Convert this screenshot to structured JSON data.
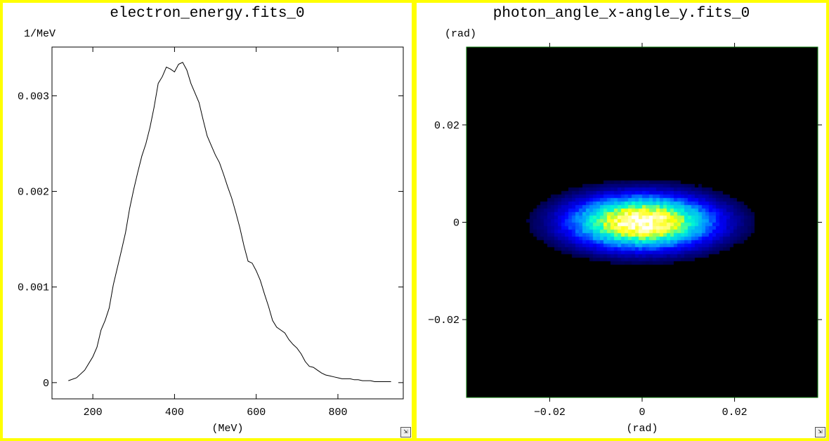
{
  "panels": [
    {
      "title": "electron_energy.fits_0",
      "resize_icon": "resize-icon",
      "chart_data": {
        "type": "line",
        "title": "electron_energy.fits_0",
        "xlabel": "(MeV)",
        "ylabel": "1/MeV",
        "xlim": [
          100,
          960
        ],
        "ylim": [
          -0.00017,
          0.00351
        ],
        "xticks": [
          200,
          400,
          600,
          800
        ],
        "yticks": [
          0,
          0.001,
          0.002,
          0.003
        ],
        "ytick_labels": [
          "0",
          "0.001",
          "0.002",
          "0.003"
        ],
        "grid": false,
        "series": [
          {
            "color": "#000000",
            "x": [
              140,
              160,
              180,
              200,
              210,
              220,
              230,
              240,
              250,
              260,
              270,
              280,
              290,
              300,
              310,
              320,
              330,
              340,
              350,
              360,
              370,
              380,
              390,
              400,
              410,
              420,
              430,
              440,
              450,
              460,
              470,
              480,
              490,
              500,
              510,
              520,
              530,
              540,
              550,
              560,
              570,
              580,
              590,
              600,
              610,
              620,
              630,
              640,
              650,
              660,
              670,
              680,
              690,
              700,
              710,
              720,
              730,
              740,
              750,
              760,
              770,
              780,
              790,
              800,
              810,
              820,
              830,
              840,
              850,
              860,
              870,
              880,
              890,
              900,
              910,
              920,
              930
            ],
            "y": [
              2e-05,
              5e-05,
              0.00013,
              0.00027,
              0.00037,
              0.00055,
              0.00065,
              0.00078,
              0.00102,
              0.0012,
              0.00138,
              0.00157,
              0.00182,
              0.00202,
              0.0022,
              0.00237,
              0.0025,
              0.00267,
              0.00288,
              0.00313,
              0.0032,
              0.0033,
              0.00328,
              0.00325,
              0.00333,
              0.00335,
              0.00327,
              0.00313,
              0.00303,
              0.00293,
              0.00275,
              0.00258,
              0.00248,
              0.00238,
              0.0023,
              0.00218,
              0.00205,
              0.00193,
              0.00178,
              0.00162,
              0.00143,
              0.00127,
              0.00125,
              0.00117,
              0.00107,
              0.00093,
              0.0008,
              0.00065,
              0.00058,
              0.00055,
              0.00052,
              0.00045,
              0.0004,
              0.00036,
              0.0003,
              0.00022,
              0.00017,
              0.00016,
              0.00013,
              0.0001,
              8e-05,
              7e-05,
              6e-05,
              5e-05,
              4e-05,
              4e-05,
              4e-05,
              3e-05,
              3e-05,
              2e-05,
              2e-05,
              2e-05,
              1e-05,
              1e-05,
              1e-05,
              1e-05,
              1e-05
            ]
          }
        ]
      }
    },
    {
      "title": "photon_angle_x-angle_y.fits_0",
      "resize_icon": "resize-icon",
      "chart_data": {
        "type": "heatmap",
        "title": "photon_angle_x-angle_y.fits_0",
        "xlabel": "(rad)",
        "ylabel": "(rad)",
        "xlim": [
          -0.038,
          0.038
        ],
        "ylim": [
          -0.036,
          0.036
        ],
        "xticks": [
          -0.02,
          0,
          0.02
        ],
        "xtick_labels": [
          "−0.02",
          "0",
          "0.02"
        ],
        "yticks": [
          -0.02,
          0,
          0.02
        ],
        "ytick_labels": [
          "−0.02",
          "0",
          "0.02"
        ],
        "grid": false,
        "colormap": [
          "#000000",
          "#000080",
          "#0000ff",
          "#00a0ff",
          "#00ffd0",
          "#ffff00",
          "#ffffff"
        ],
        "distribution": {
          "center_x": 0.0,
          "center_y": 0.0,
          "sigma_x": 0.0085,
          "sigma_y": 0.003
        }
      }
    }
  ]
}
